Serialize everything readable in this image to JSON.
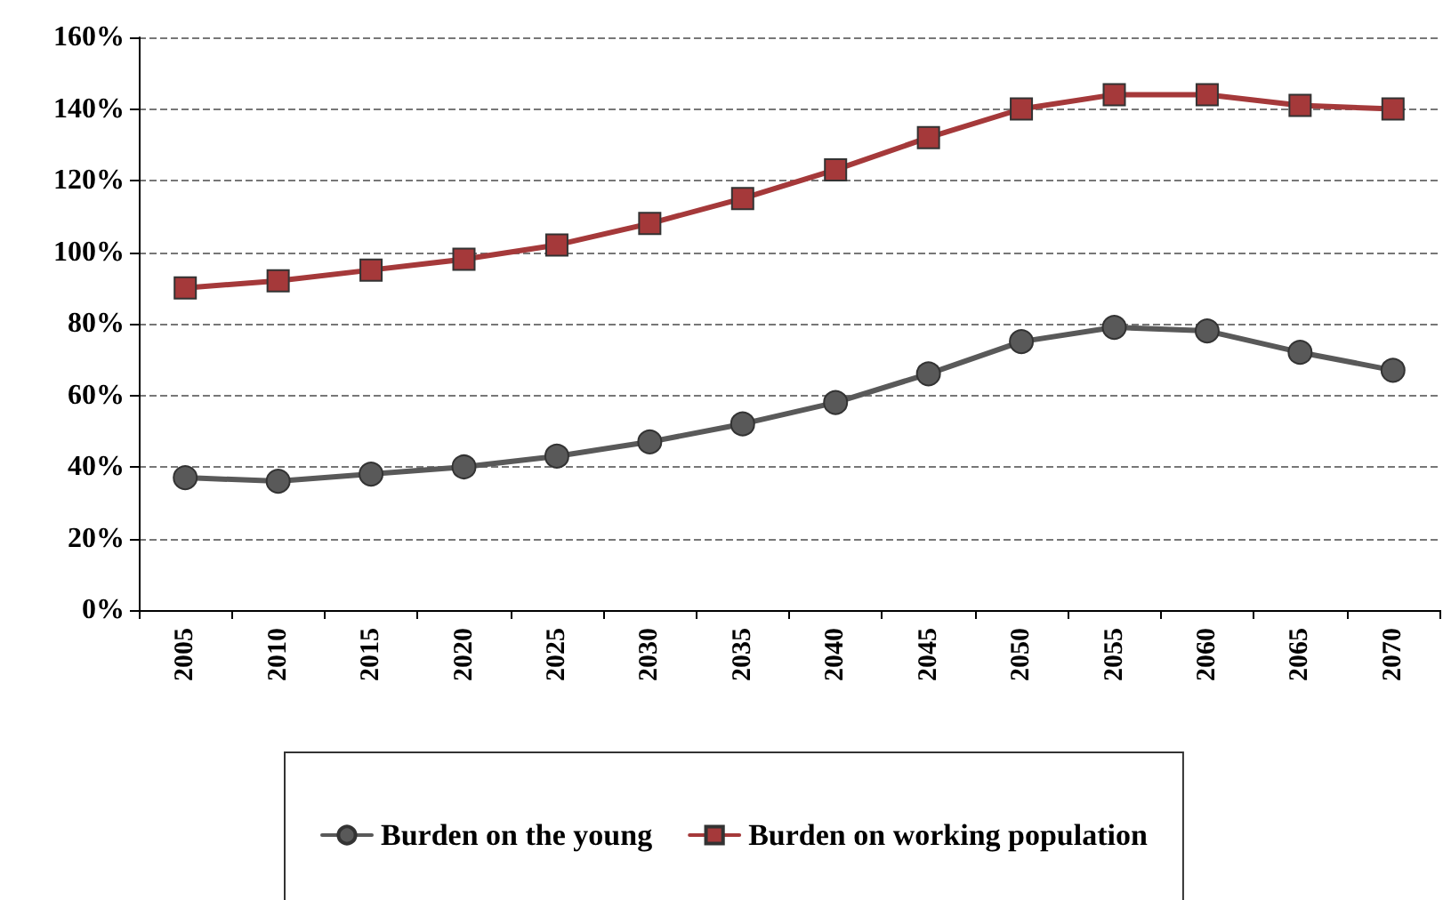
{
  "chart_data": {
    "type": "line",
    "categories": [
      "2005",
      "2010",
      "2015",
      "2020",
      "2025",
      "2030",
      "2035",
      "2040",
      "2045",
      "2050",
      "2055",
      "2060",
      "2065",
      "2070"
    ],
    "series": [
      {
        "name": "Burden on the young",
        "color": "#595959",
        "marker": "circle",
        "values": [
          37,
          36,
          38,
          40,
          43,
          47,
          52,
          58,
          66,
          75,
          79,
          78,
          72,
          67
        ]
      },
      {
        "name": "Burden on working population",
        "color": "#a5393a",
        "marker": "square",
        "values": [
          90,
          92,
          95,
          98,
          102,
          108,
          115,
          123,
          132,
          140,
          144,
          144,
          141,
          140
        ]
      }
    ],
    "ylim": [
      0,
      160
    ],
    "yticks": [
      {
        "value": 0,
        "label": "0%"
      },
      {
        "value": 20,
        "label": "20%"
      },
      {
        "value": 40,
        "label": "40%"
      },
      {
        "value": 60,
        "label": "60%"
      },
      {
        "value": 80,
        "label": "80%"
      },
      {
        "value": 100,
        "label": "100%"
      },
      {
        "value": 120,
        "label": "120%"
      },
      {
        "value": 140,
        "label": "140%"
      },
      {
        "value": 160,
        "label": "160%"
      }
    ],
    "grid": "y",
    "legend": "bottom",
    "line_style": "solid"
  }
}
